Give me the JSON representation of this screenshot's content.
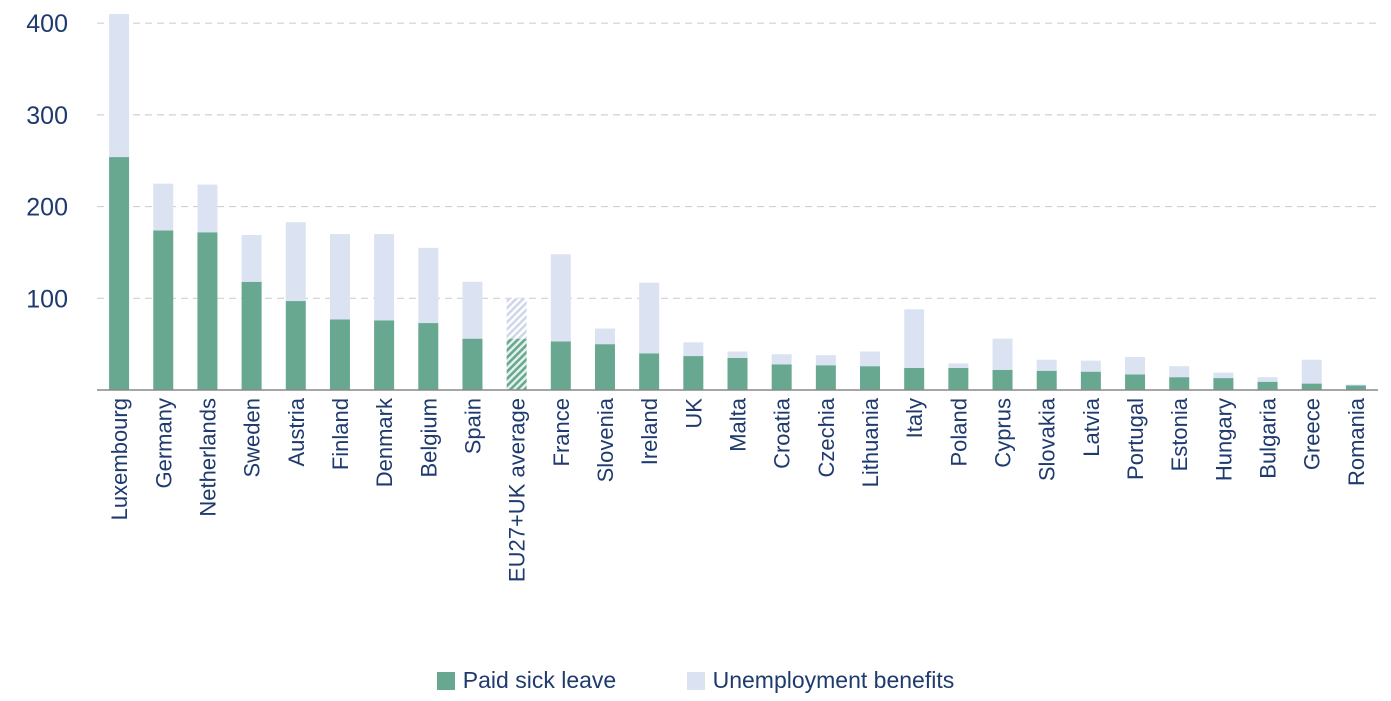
{
  "chart_data": {
    "type": "bar",
    "stacked": true,
    "categories": [
      "Luxembourg",
      "Germany",
      "Netherlands",
      "Sweden",
      "Austria",
      "Finland",
      "Denmark",
      "Belgium",
      "Spain",
      "EU27+UK average",
      "France",
      "Slovenia",
      "Ireland",
      "UK",
      "Malta",
      "Croatia",
      "Czechia",
      "Lithuania",
      "Italy",
      "Poland",
      "Cyprus",
      "Slovakia",
      "Latvia",
      "Portugal",
      "Estonia",
      "Hungary",
      "Bulgaria",
      "Greece",
      "Romania"
    ],
    "series": [
      {
        "name": "Paid sick leave",
        "color": "#68a890",
        "values": [
          254,
          174,
          172,
          118,
          97,
          77,
          76,
          73,
          56,
          56,
          53,
          50,
          40,
          37,
          35,
          28,
          27,
          26,
          24,
          24,
          22,
          21,
          20,
          17,
          14,
          13,
          9,
          7,
          5
        ]
      },
      {
        "name": "Unemployment benefits",
        "color": "#dbe3f3",
        "values": [
          156,
          51,
          52,
          51,
          86,
          93,
          94,
          82,
          62,
          44,
          95,
          17,
          77,
          15,
          7,
          11,
          11,
          16,
          64,
          5,
          34,
          12,
          12,
          19,
          12,
          6,
          5,
          26,
          1
        ]
      }
    ],
    "highlight_category": "EU27+UK average",
    "ylim": [
      0,
      410
    ],
    "yticks": [
      100,
      200,
      300,
      400
    ],
    "grid": true,
    "legend_position": "bottom",
    "xlabel": "",
    "ylabel": "",
    "title": ""
  }
}
